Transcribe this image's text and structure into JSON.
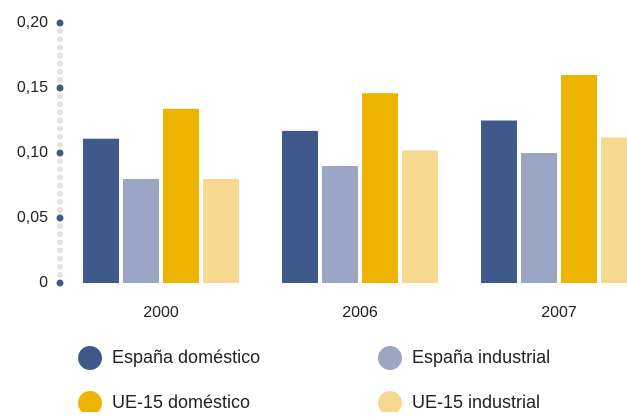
{
  "chart_data": {
    "type": "bar",
    "categories": [
      "2000",
      "2006",
      "2007"
    ],
    "series": [
      {
        "name": "España doméstico",
        "color": "#3f5a8a",
        "values": [
          0.111,
          0.117,
          0.125
        ]
      },
      {
        "name": "España industrial",
        "color": "#9aa6c4",
        "values": [
          0.08,
          0.09,
          0.1
        ]
      },
      {
        "name": "UE-15 doméstico",
        "color": "#ecb400",
        "values": [
          0.134,
          0.146,
          0.16
        ]
      },
      {
        "name": "UE-15 industrial",
        "color": "#f6d891",
        "values": [
          0.08,
          0.102,
          0.112
        ]
      }
    ],
    "ylim": [
      0,
      0.2
    ],
    "yticks": [
      0,
      {
        "value": 0.05,
        "label": "0,05"
      },
      {
        "value": 0.1,
        "label": "0,10"
      },
      {
        "value": 0.15,
        "label": "0,15"
      },
      {
        "value": 0.2,
        "label": "0,20"
      }
    ],
    "grid": false
  }
}
